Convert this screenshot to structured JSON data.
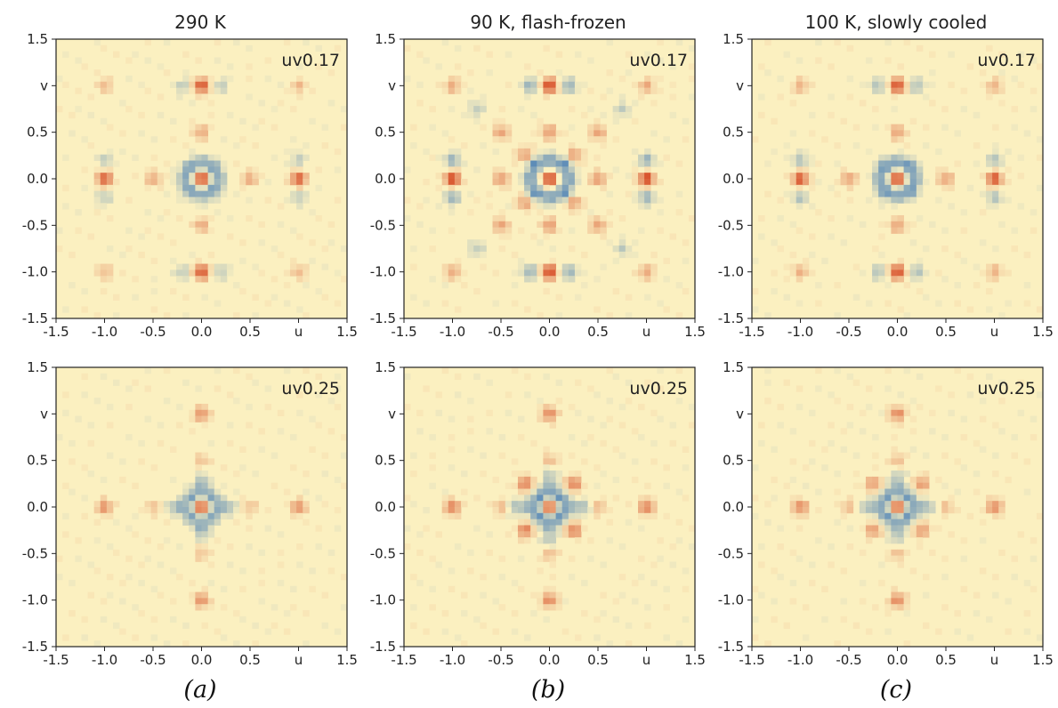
{
  "figure": {
    "column_titles": [
      "290 K",
      "90 K, flash-frozen",
      "100 K, slowly cooled"
    ],
    "column_captions": [
      "(a)",
      "(b)",
      "(c)"
    ]
  },
  "chart_data": {
    "type": "heatmap",
    "xlabel": "u",
    "ylabel": "v",
    "xlim": [
      -1.5,
      1.5
    ],
    "ylim": [
      -1.5,
      1.5
    ],
    "xticks": [
      "-1.5",
      "-1.0",
      "-0.5",
      "0.0",
      "0.5",
      "u",
      "1.5"
    ],
    "yticks": [
      "1.5",
      "v",
      "0.5",
      "0.0",
      "-0.5",
      "-1.0",
      "-1.5"
    ],
    "colors": {
      "background": "#fbf0c0",
      "positive": "#d4401a",
      "negative": "#2f6fb5",
      "frame": "#222222"
    },
    "panels": [
      {
        "row": 0,
        "col": 0,
        "label": "uv0.17",
        "title": "290 K",
        "peaks": [
          [
            0,
            0,
            1
          ],
          [
            0,
            1,
            0.9
          ],
          [
            0,
            -1,
            0.9
          ],
          [
            1,
            0,
            0.85
          ],
          [
            -1,
            0,
            0.85
          ],
          [
            0.5,
            0,
            0.4
          ],
          [
            -0.5,
            0,
            0.4
          ],
          [
            0,
            0.5,
            0.4
          ],
          [
            0,
            -0.5,
            0.4
          ],
          [
            1,
            1,
            0.3
          ],
          [
            -1,
            1,
            0.3
          ],
          [
            1,
            -1,
            0.3
          ],
          [
            -1,
            -1,
            0.3
          ]
        ],
        "troughs": [
          [
            0.12,
            0.12,
            0.8
          ],
          [
            -0.12,
            0.12,
            0.8
          ],
          [
            0.12,
            -0.12,
            0.8
          ],
          [
            -0.12,
            -0.12,
            0.8
          ],
          [
            0.18,
            0,
            0.6
          ],
          [
            -0.18,
            0,
            0.6
          ],
          [
            0,
            0.18,
            0.6
          ],
          [
            0,
            -0.18,
            0.6
          ],
          [
            1,
            0.2,
            0.35
          ],
          [
            1,
            -0.2,
            0.35
          ],
          [
            -1,
            0.2,
            0.35
          ],
          [
            -1,
            -0.2,
            0.35
          ],
          [
            0.2,
            1,
            0.35
          ],
          [
            -0.2,
            1,
            0.35
          ],
          [
            0.2,
            -1,
            0.35
          ],
          [
            -0.2,
            -1,
            0.35
          ]
        ]
      },
      {
        "row": 0,
        "col": 1,
        "label": "uv0.17",
        "title": "90 K, flash-frozen",
        "peaks": [
          [
            0,
            0,
            1
          ],
          [
            0,
            1,
            1
          ],
          [
            0,
            -1,
            1
          ],
          [
            1,
            0,
            1
          ],
          [
            -1,
            0,
            1
          ],
          [
            0.5,
            0,
            0.5
          ],
          [
            -0.5,
            0,
            0.5
          ],
          [
            0,
            0.5,
            0.5
          ],
          [
            0,
            -0.5,
            0.5
          ],
          [
            0.5,
            0.5,
            0.45
          ],
          [
            -0.5,
            0.5,
            0.45
          ],
          [
            0.5,
            -0.5,
            0.45
          ],
          [
            -0.5,
            -0.5,
            0.45
          ],
          [
            1,
            1,
            0.4
          ],
          [
            -1,
            1,
            0.4
          ],
          [
            1,
            -1,
            0.4
          ],
          [
            -1,
            -1,
            0.4
          ],
          [
            0.25,
            0.25,
            0.5
          ],
          [
            -0.25,
            0.25,
            0.5
          ],
          [
            0.25,
            -0.25,
            0.5
          ],
          [
            -0.25,
            -0.25,
            0.5
          ]
        ],
        "troughs": [
          [
            0.15,
            0.15,
            1
          ],
          [
            -0.15,
            0.15,
            1
          ],
          [
            0.15,
            -0.15,
            1
          ],
          [
            -0.15,
            -0.15,
            1
          ],
          [
            0.2,
            0,
            0.8
          ],
          [
            -0.2,
            0,
            0.8
          ],
          [
            0,
            0.2,
            0.8
          ],
          [
            0,
            -0.2,
            0.8
          ],
          [
            1,
            0.2,
            0.6
          ],
          [
            1,
            -0.2,
            0.6
          ],
          [
            -1,
            0.2,
            0.6
          ],
          [
            -1,
            -0.2,
            0.6
          ],
          [
            0.2,
            1,
            0.6
          ],
          [
            -0.2,
            1,
            0.6
          ],
          [
            0.2,
            -1,
            0.6
          ],
          [
            -0.2,
            -1,
            0.6
          ],
          [
            0.75,
            0.75,
            0.35
          ],
          [
            -0.75,
            0.75,
            0.35
          ],
          [
            0.75,
            -0.75,
            0.35
          ],
          [
            -0.75,
            -0.75,
            0.35
          ]
        ]
      },
      {
        "row": 0,
        "col": 2,
        "label": "uv0.17",
        "title": "100 K, slowly cooled",
        "peaks": [
          [
            0,
            0,
            1
          ],
          [
            0,
            1,
            0.95
          ],
          [
            0,
            -1,
            0.95
          ],
          [
            1,
            0,
            0.9
          ],
          [
            -1,
            0,
            0.9
          ],
          [
            0.5,
            0,
            0.45
          ],
          [
            -0.5,
            0,
            0.45
          ],
          [
            0,
            0.5,
            0.45
          ],
          [
            0,
            -0.5,
            0.45
          ],
          [
            1,
            1,
            0.35
          ],
          [
            -1,
            1,
            0.35
          ],
          [
            1,
            -1,
            0.35
          ],
          [
            -1,
            -1,
            0.35
          ]
        ],
        "troughs": [
          [
            0.13,
            0.13,
            0.9
          ],
          [
            -0.13,
            0.13,
            0.9
          ],
          [
            0.13,
            -0.13,
            0.9
          ],
          [
            -0.13,
            -0.13,
            0.9
          ],
          [
            0.18,
            0,
            0.7
          ],
          [
            -0.18,
            0,
            0.7
          ],
          [
            0,
            0.18,
            0.7
          ],
          [
            0,
            -0.18,
            0.7
          ],
          [
            1,
            0.2,
            0.45
          ],
          [
            1,
            -0.2,
            0.45
          ],
          [
            -1,
            0.2,
            0.45
          ],
          [
            -1,
            -0.2,
            0.45
          ],
          [
            0.2,
            1,
            0.45
          ],
          [
            -0.2,
            1,
            0.45
          ],
          [
            0.2,
            -1,
            0.45
          ],
          [
            -0.2,
            -1,
            0.45
          ]
        ]
      },
      {
        "row": 1,
        "col": 0,
        "label": "uv0.25",
        "title": "290 K",
        "peaks": [
          [
            0,
            0,
            1
          ],
          [
            0,
            1,
            0.55
          ],
          [
            0,
            -1,
            0.55
          ],
          [
            1,
            0,
            0.55
          ],
          [
            -1,
            0,
            0.55
          ],
          [
            0,
            0.5,
            0.25
          ],
          [
            0,
            -0.5,
            0.25
          ],
          [
            0.5,
            0,
            0.25
          ],
          [
            -0.5,
            0,
            0.25
          ]
        ],
        "troughs": [
          [
            0.1,
            0.1,
            0.75
          ],
          [
            -0.1,
            0.1,
            0.75
          ],
          [
            0.1,
            -0.1,
            0.75
          ],
          [
            -0.1,
            -0.1,
            0.75
          ],
          [
            0.2,
            0,
            0.6
          ],
          [
            -0.2,
            0,
            0.6
          ],
          [
            0,
            0.2,
            0.6
          ],
          [
            0,
            -0.2,
            0.6
          ],
          [
            0.3,
            0,
            0.3
          ],
          [
            -0.3,
            0,
            0.3
          ],
          [
            0,
            0.3,
            0.3
          ],
          [
            0,
            -0.3,
            0.3
          ]
        ]
      },
      {
        "row": 1,
        "col": 1,
        "label": "uv0.25",
        "title": "90 K, flash-frozen",
        "peaks": [
          [
            0,
            0,
            1
          ],
          [
            0,
            1,
            0.6
          ],
          [
            0,
            -1,
            0.6
          ],
          [
            1,
            0,
            0.65
          ],
          [
            -1,
            0,
            0.65
          ],
          [
            0.25,
            0.25,
            0.65
          ],
          [
            -0.25,
            0.25,
            0.65
          ],
          [
            0.25,
            -0.25,
            0.65
          ],
          [
            -0.25,
            -0.25,
            0.65
          ],
          [
            0,
            0.5,
            0.3
          ],
          [
            0,
            -0.5,
            0.3
          ],
          [
            0.5,
            0,
            0.3
          ],
          [
            -0.5,
            0,
            0.3
          ]
        ],
        "troughs": [
          [
            0.1,
            0.1,
            0.9
          ],
          [
            -0.1,
            0.1,
            0.9
          ],
          [
            0.1,
            -0.1,
            0.9
          ],
          [
            -0.1,
            -0.1,
            0.9
          ],
          [
            0.2,
            0,
            0.7
          ],
          [
            -0.2,
            0,
            0.7
          ],
          [
            0,
            0.2,
            0.7
          ],
          [
            0,
            -0.2,
            0.7
          ],
          [
            0.35,
            0,
            0.5
          ],
          [
            -0.35,
            0,
            0.5
          ],
          [
            0,
            0.35,
            0.4
          ],
          [
            0,
            -0.35,
            0.4
          ]
        ]
      },
      {
        "row": 1,
        "col": 2,
        "label": "uv0.25",
        "title": "100 K, slowly cooled",
        "peaks": [
          [
            0,
            0,
            1
          ],
          [
            0,
            1,
            0.6
          ],
          [
            0,
            -1,
            0.6
          ],
          [
            1,
            0,
            0.6
          ],
          [
            -1,
            0,
            0.6
          ],
          [
            0.25,
            0.25,
            0.5
          ],
          [
            -0.25,
            0.25,
            0.5
          ],
          [
            0.25,
            -0.25,
            0.5
          ],
          [
            -0.25,
            -0.25,
            0.5
          ],
          [
            0,
            0.5,
            0.28
          ],
          [
            0,
            -0.5,
            0.28
          ],
          [
            0.5,
            0,
            0.28
          ],
          [
            -0.5,
            0,
            0.28
          ]
        ],
        "troughs": [
          [
            0.1,
            0.1,
            0.85
          ],
          [
            -0.1,
            0.1,
            0.85
          ],
          [
            0.1,
            -0.1,
            0.85
          ],
          [
            -0.1,
            -0.1,
            0.85
          ],
          [
            0.2,
            0,
            0.65
          ],
          [
            -0.2,
            0,
            0.65
          ],
          [
            0,
            0.2,
            0.65
          ],
          [
            0,
            -0.2,
            0.65
          ],
          [
            0.33,
            0,
            0.4
          ],
          [
            -0.33,
            0,
            0.4
          ],
          [
            0,
            0.33,
            0.35
          ],
          [
            0,
            -0.33,
            0.35
          ]
        ]
      }
    ]
  }
}
